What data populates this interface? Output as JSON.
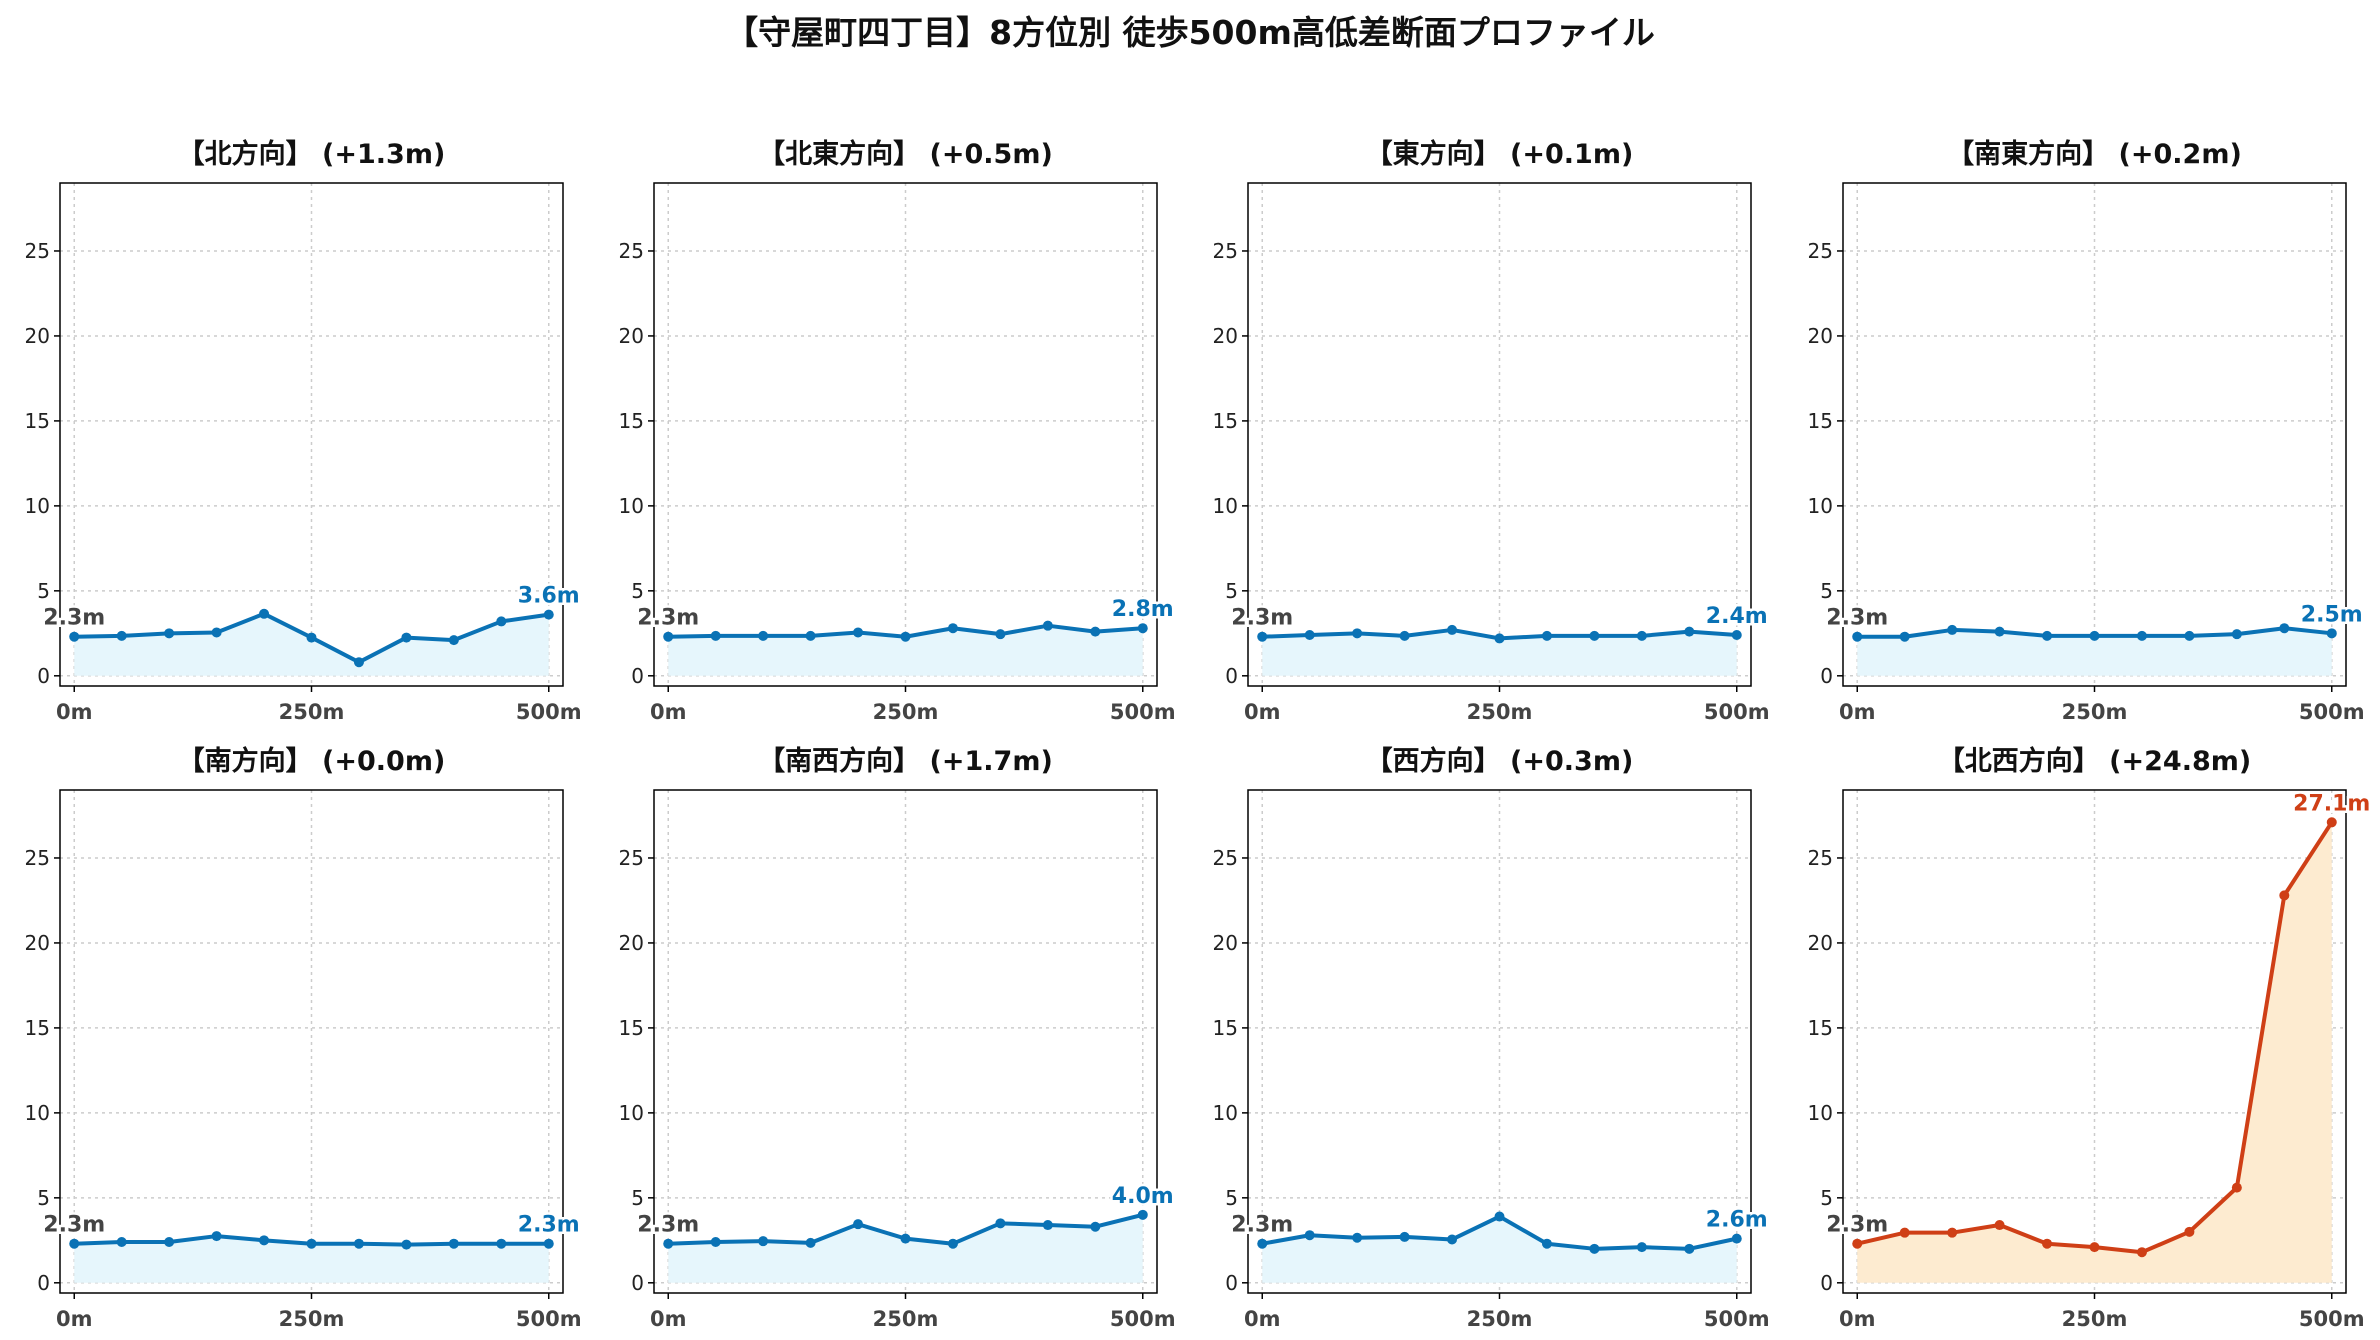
{
  "chart_data": {
    "type": "line",
    "title": "【守屋町四丁目】8方位別 徒歩500m高低差断面プロファイル",
    "x": [
      0,
      50,
      100,
      150,
      200,
      250,
      300,
      350,
      400,
      450,
      500
    ],
    "x_tick_labels": [
      "0m",
      "250m",
      "500m"
    ],
    "y_ticks": [
      0,
      5,
      10,
      15,
      20,
      25
    ],
    "ylim": [
      -0.6,
      29
    ],
    "grid": true,
    "colors": {
      "normal": "#0a72b5",
      "normal_fill": "#e6f6fc",
      "highlight": "#cf3f16",
      "highlight_fill": "#fdebd0"
    },
    "panels": [
      {
        "title": "【北方向】 (+1.3m)",
        "values": [
          2.3,
          2.35,
          2.5,
          2.55,
          3.65,
          2.25,
          0.8,
          2.25,
          2.1,
          3.2,
          3.6
        ],
        "start_label": "2.3m",
        "end_label": "3.6m",
        "highlight": false
      },
      {
        "title": "【北東方向】 (+0.5m)",
        "values": [
          2.3,
          2.35,
          2.35,
          2.35,
          2.55,
          2.3,
          2.8,
          2.45,
          2.95,
          2.6,
          2.8
        ],
        "start_label": "2.3m",
        "end_label": "2.8m",
        "highlight": false
      },
      {
        "title": "【東方向】 (+0.1m)",
        "values": [
          2.3,
          2.4,
          2.5,
          2.35,
          2.7,
          2.2,
          2.35,
          2.35,
          2.35,
          2.6,
          2.4
        ],
        "start_label": "2.3m",
        "end_label": "2.4m",
        "highlight": false
      },
      {
        "title": "【南東方向】 (+0.2m)",
        "values": [
          2.3,
          2.3,
          2.7,
          2.6,
          2.35,
          2.35,
          2.35,
          2.35,
          2.45,
          2.8,
          2.5
        ],
        "start_label": "2.3m",
        "end_label": "2.5m",
        "highlight": false
      },
      {
        "title": "【南方向】 (+0.0m)",
        "values": [
          2.3,
          2.4,
          2.4,
          2.75,
          2.5,
          2.3,
          2.3,
          2.25,
          2.3,
          2.3,
          2.3
        ],
        "start_label": "2.3m",
        "end_label": "2.3m",
        "highlight": false
      },
      {
        "title": "【南西方向】 (+1.7m)",
        "values": [
          2.3,
          2.4,
          2.45,
          2.35,
          3.45,
          2.6,
          2.3,
          3.5,
          3.4,
          3.3,
          4.0
        ],
        "start_label": "2.3m",
        "end_label": "4.0m",
        "highlight": false
      },
      {
        "title": "【西方向】 (+0.3m)",
        "values": [
          2.3,
          2.8,
          2.65,
          2.7,
          2.55,
          3.9,
          2.3,
          2.0,
          2.1,
          2.0,
          2.6
        ],
        "start_label": "2.3m",
        "end_label": "2.6m",
        "highlight": false
      },
      {
        "title": "【北西方向】 (+24.8m)",
        "values": [
          2.3,
          2.95,
          2.95,
          3.4,
          2.3,
          2.1,
          1.8,
          3.0,
          5.6,
          22.8,
          27.1
        ],
        "start_label": "2.3m",
        "end_label": "27.1m",
        "highlight": true
      }
    ]
  }
}
